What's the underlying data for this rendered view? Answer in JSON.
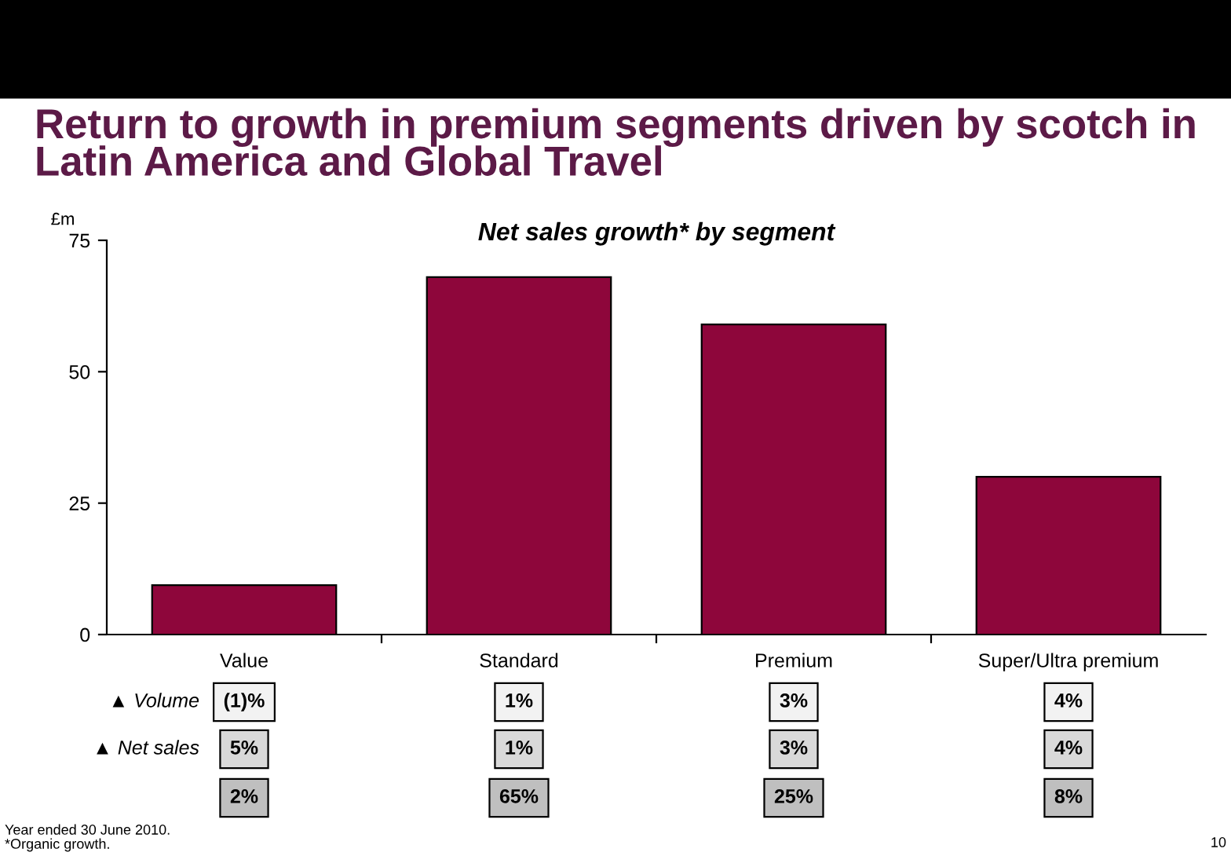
{
  "chart_data": {
    "type": "bar",
    "title": "Return to growth in premium segments driven by scotch in Latin America and Global Travel",
    "subtitle": "Net sales growth* by segment",
    "ylabel": "£m",
    "categories": [
      "Value",
      "Standard",
      "Premium",
      "Super/Ultra premium"
    ],
    "values": [
      9.4,
      68,
      59,
      30
    ],
    "color": "#8e063b",
    "ylim": [
      0,
      75
    ],
    "yticks": [
      0,
      25,
      50,
      75
    ],
    "grid": false,
    "annotations": [
      "▲ Volume",
      "(1)%",
      "1%",
      "3%",
      "4%",
      "▲ Net sales",
      "5%",
      "1%",
      "3%",
      "4%",
      "2%",
      "65%",
      "25%",
      "8%",
      "Year ended 30 June 2010.",
      "*Organic growth.",
      "10"
    ]
  }
}
